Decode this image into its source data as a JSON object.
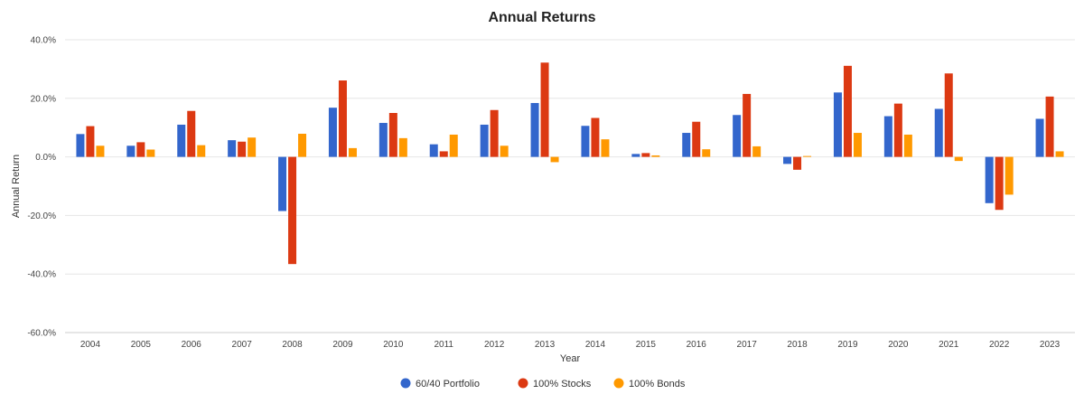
{
  "chart_data": {
    "type": "bar",
    "title": "Annual Returns",
    "xlabel": "Year",
    "ylabel": "Annual Return",
    "ylim": [
      -60,
      40
    ],
    "yticks": [
      40,
      20,
      0,
      -20,
      -40,
      -60
    ],
    "ytick_labels": [
      "40.0%",
      "20.0%",
      "0.0%",
      "-20.0%",
      "-40.0%",
      "-60.0%"
    ],
    "grid": true,
    "legend_position": "bottom-center",
    "categories": [
      "2004",
      "2005",
      "2006",
      "2007",
      "2008",
      "2009",
      "2010",
      "2011",
      "2012",
      "2013",
      "2014",
      "2015",
      "2016",
      "2017",
      "2018",
      "2019",
      "2020",
      "2021",
      "2022",
      "2023"
    ],
    "series": [
      {
        "name": "60/40 Portfolio",
        "color": "#3366cc",
        "values": [
          7.8,
          3.8,
          11.0,
          5.7,
          -18.5,
          16.8,
          11.6,
          4.3,
          11.0,
          18.4,
          10.6,
          1.0,
          8.2,
          14.3,
          -2.4,
          22.0,
          13.9,
          16.4,
          -15.8,
          13.0
        ]
      },
      {
        "name": "100% Stocks",
        "color": "#dc3912",
        "values": [
          10.5,
          5.0,
          15.7,
          5.2,
          -36.6,
          26.1,
          15.0,
          1.9,
          16.0,
          32.2,
          13.3,
          1.3,
          12.0,
          21.5,
          -4.4,
          31.1,
          18.2,
          28.5,
          -18.1,
          20.6
        ]
      },
      {
        "name": "100% Bonds",
        "color": "#ff9900",
        "values": [
          3.8,
          2.5,
          4.0,
          6.6,
          7.9,
          3.0,
          6.4,
          7.6,
          3.8,
          -1.8,
          6.0,
          0.5,
          2.6,
          3.6,
          0.3,
          8.2,
          7.6,
          -1.4,
          -12.9,
          1.9
        ]
      }
    ]
  }
}
